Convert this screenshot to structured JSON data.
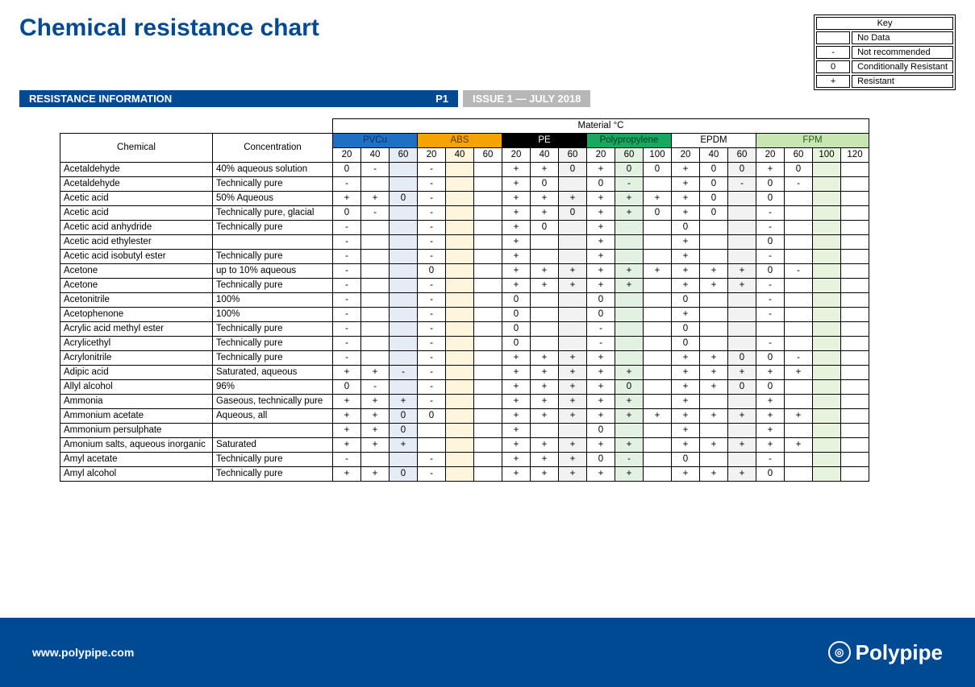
{
  "title": "Chemical resistance chart",
  "subtitle": "RESISTANCE INFORMATION",
  "pageLabel": "P1",
  "issue": "ISSUE 1 — JULY 2018",
  "key": {
    "title": "Key",
    "rows": [
      {
        "sym": "",
        "desc": "No Data"
      },
      {
        "sym": "-",
        "desc": "Not recommended"
      },
      {
        "sym": "0",
        "desc": "Conditionally Resistant"
      },
      {
        "sym": "+",
        "desc": "Resistant"
      }
    ]
  },
  "columns": {
    "chemical": "Chemical",
    "concentration": "Concentration",
    "materialHeader": "Material °C"
  },
  "materials": [
    {
      "name": "PVCu",
      "temps": [
        "20",
        "40",
        "60"
      ],
      "headerBg": "#1f6fc2",
      "headerFg": "#003060",
      "colBg": "#e6ecf6",
      "tintCol": 2
    },
    {
      "name": "ABS",
      "temps": [
        "20",
        "40",
        "60"
      ],
      "headerBg": "#f5a300",
      "headerFg": "#5c3a00",
      "colBg": "#fff4dc",
      "tintCol": 1
    },
    {
      "name": "PE",
      "temps": [
        "20",
        "40",
        "60"
      ],
      "headerBg": "#000000",
      "headerFg": "#ffffff",
      "colBg": "#f2f2f2",
      "tintCol": 2
    },
    {
      "name": "Polypropylene",
      "temps": [
        "20",
        "60",
        "100"
      ],
      "headerBg": "#1aa861",
      "headerFg": "#003d1f",
      "colBg": "#e3f1e3",
      "tintCol": 1
    },
    {
      "name": "EPDM",
      "temps": [
        "20",
        "40",
        "60"
      ],
      "headerBg": "#ffffff",
      "headerFg": "#000000",
      "colBg": "#f2f2f2",
      "tintCol": 2
    },
    {
      "name": "FPM",
      "temps": [
        "20",
        "60",
        "100",
        "120"
      ],
      "headerBg": "#c7e6b3",
      "headerFg": "#2b5a1e",
      "colBg": "#e8f3dd",
      "tintCol": 2
    }
  ],
  "rows": [
    {
      "chem": "Acetaldehyde",
      "conc": "40% aqueous solution",
      "v": [
        "0",
        "-",
        "",
        "-",
        "",
        "",
        "+",
        "+",
        "0",
        "+",
        "0",
        "0",
        "+",
        "0",
        "0",
        "+",
        "0",
        "",
        ""
      ]
    },
    {
      "chem": "Acetaldehyde",
      "conc": "Technically pure",
      "v": [
        "-",
        "",
        "",
        "-",
        "",
        "",
        "+",
        "0",
        "",
        "0",
        "-",
        "",
        "+",
        "0",
        "-",
        "0",
        "-",
        "",
        ""
      ]
    },
    {
      "chem": "Acetic acid",
      "conc": "50% Aqueous",
      "v": [
        "+",
        "+",
        "0",
        "-",
        "",
        "",
        "+",
        "+",
        "+",
        "+",
        "+",
        "+",
        "+",
        "0",
        "",
        "0",
        "",
        "",
        ""
      ]
    },
    {
      "chem": "Acetic acid",
      "conc": "Technically pure, glacial",
      "v": [
        "0",
        "-",
        "",
        "-",
        "",
        "",
        "+",
        "+",
        "0",
        "+",
        "+",
        "0",
        "+",
        "0",
        "",
        "-",
        "",
        "",
        ""
      ]
    },
    {
      "chem": "Acetic acid anhydride",
      "conc": "Technically pure",
      "v": [
        "-",
        "",
        "",
        "-",
        "",
        "",
        "+",
        "0",
        "",
        "+",
        "",
        "",
        "0",
        "",
        "",
        "-",
        "",
        "",
        ""
      ]
    },
    {
      "chem": "Acetic acid ethylester",
      "conc": "",
      "v": [
        "-",
        "",
        "",
        "-",
        "",
        "",
        "+",
        "",
        "",
        "+",
        "",
        "",
        "+",
        "",
        "",
        "0",
        "",
        "",
        ""
      ]
    },
    {
      "chem": "Acetic acid isobutyl ester",
      "conc": "Technically pure",
      "v": [
        "-",
        "",
        "",
        "-",
        "",
        "",
        "+",
        "",
        "",
        "+",
        "",
        "",
        "+",
        "",
        "",
        "-",
        "",
        "",
        ""
      ]
    },
    {
      "chem": "Acetone",
      "conc": "up to 10% aqueous",
      "v": [
        "-",
        "",
        "",
        "0",
        "",
        "",
        "+",
        "+",
        "+",
        "+",
        "+",
        "+",
        "+",
        "+",
        "+",
        "0",
        "-",
        "",
        ""
      ]
    },
    {
      "chem": "Acetone",
      "conc": "Technically pure",
      "v": [
        "-",
        "",
        "",
        "-",
        "",
        "",
        "+",
        "+",
        "+",
        "+",
        "+",
        "",
        "+",
        "+",
        "+",
        "-",
        "",
        "",
        ""
      ]
    },
    {
      "chem": "Acetonitrile",
      "conc": "100%",
      "v": [
        "-",
        "",
        "",
        "-",
        "",
        "",
        "0",
        "",
        "",
        "0",
        "",
        "",
        "0",
        "",
        "",
        "-",
        "",
        "",
        ""
      ]
    },
    {
      "chem": "Acetophenone",
      "conc": "100%",
      "v": [
        "-",
        "",
        "",
        "-",
        "",
        "",
        "0",
        "",
        "",
        "0",
        "",
        "",
        "+",
        "",
        "",
        "-",
        "",
        "",
        ""
      ]
    },
    {
      "chem": "Acrylic acid methyl ester",
      "conc": "Technically pure",
      "v": [
        "-",
        "",
        "",
        "-",
        "",
        "",
        "0",
        "",
        "",
        "-",
        "",
        "",
        "0",
        "",
        "",
        "",
        "",
        "",
        ""
      ]
    },
    {
      "chem": "Acrylicethyl",
      "conc": "Technically pure",
      "v": [
        "-",
        "",
        "",
        "-",
        "",
        "",
        "0",
        "",
        "",
        "-",
        "",
        "",
        "0",
        "",
        "",
        "-",
        "",
        "",
        ""
      ]
    },
    {
      "chem": "Acrylonitrile",
      "conc": "Technically pure",
      "v": [
        "-",
        "",
        "",
        "-",
        "",
        "",
        "+",
        "+",
        "+",
        "+",
        "",
        "",
        "+",
        "+",
        "0",
        "0",
        "-",
        "",
        ""
      ]
    },
    {
      "chem": "Adipic acid",
      "conc": "Saturated, aqueous",
      "v": [
        "+",
        "+",
        "-",
        "-",
        "",
        "",
        "+",
        "+",
        "+",
        "+",
        "+",
        "",
        "+",
        "+",
        "+",
        "+",
        "+",
        "",
        ""
      ]
    },
    {
      "chem": "Allyl alcohol",
      "conc": "96%",
      "v": [
        "0",
        "-",
        "",
        "-",
        "",
        "",
        "+",
        "+",
        "+",
        "+",
        "0",
        "",
        "+",
        "+",
        "0",
        "0",
        "",
        "",
        ""
      ]
    },
    {
      "chem": "Ammonia",
      "conc": "Gaseous, technically pure",
      "v": [
        "+",
        "+",
        "+",
        "-",
        "",
        "",
        "+",
        "+",
        "+",
        "+",
        "+",
        "",
        "+",
        "",
        "",
        "+",
        "",
        "",
        ""
      ]
    },
    {
      "chem": "Ammonium acetate",
      "conc": "Aqueous, all",
      "v": [
        "+",
        "+",
        "0",
        "0",
        "",
        "",
        "+",
        "+",
        "+",
        "+",
        "+",
        "+",
        "+",
        "+",
        "+",
        "+",
        "+",
        "",
        ""
      ]
    },
    {
      "chem": "Ammonium persulphate",
      "conc": "",
      "v": [
        "+",
        "+",
        "0",
        "",
        "",
        "",
        "+",
        "",
        "",
        "0",
        "",
        "",
        "+",
        "",
        "",
        "+",
        "",
        "",
        ""
      ]
    },
    {
      "chem": "Amonium salts, aqueous inorganic",
      "conc": "Saturated",
      "v": [
        "+",
        "+",
        "+",
        "",
        "",
        "",
        "+",
        "+",
        "+",
        "+",
        "+",
        "",
        "+",
        "+",
        "+",
        "+",
        "+",
        "",
        ""
      ]
    },
    {
      "chem": "Amyl acetate",
      "conc": "Technically pure",
      "v": [
        "-",
        "",
        "",
        "-",
        "",
        "",
        "+",
        "+",
        "+",
        "0",
        "-",
        "",
        "0",
        "",
        "",
        "-",
        "",
        "",
        ""
      ]
    },
    {
      "chem": "Amyl alcohol",
      "conc": "Technically pure",
      "v": [
        "+",
        "+",
        "0",
        "-",
        "",
        "",
        "+",
        "+",
        "+",
        "+",
        "+",
        "",
        "+",
        "+",
        "+",
        "0",
        "",
        "",
        ""
      ]
    }
  ],
  "footer": {
    "url": "www.polypipe.com",
    "brand": "Polypipe"
  }
}
